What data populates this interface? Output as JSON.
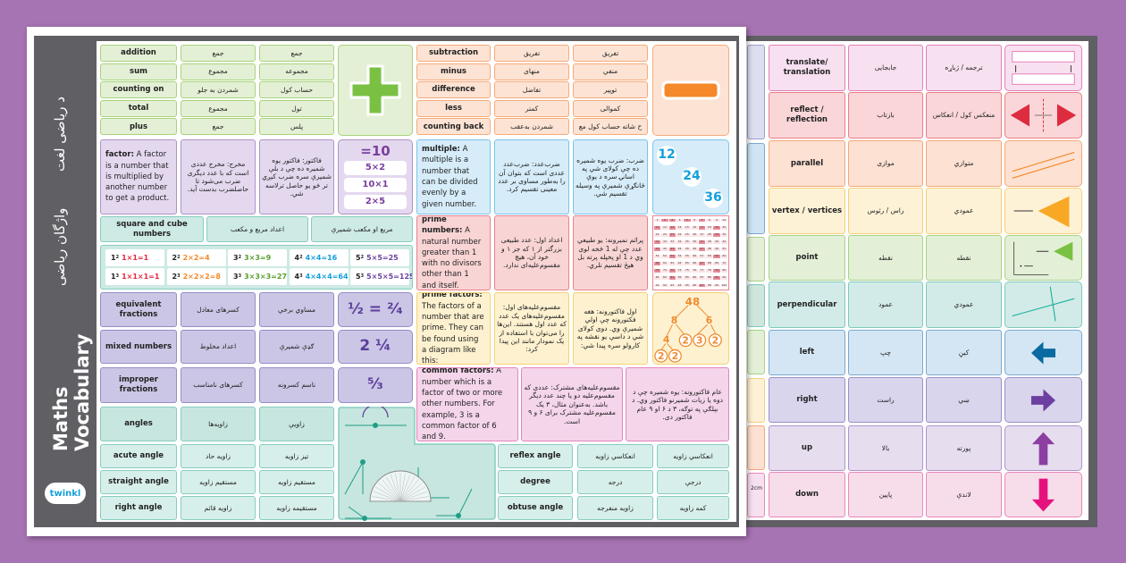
{
  "sidebar": {
    "title_en": "Maths Vocabulary",
    "title_fa": "واژگان ریاضی",
    "title_ps": "د رياضی لغت",
    "logo": "twinkl"
  },
  "addition": {
    "rows": [
      [
        "addition",
        "جمع",
        "جمع"
      ],
      [
        "sum",
        "مجموع",
        "مجموعه"
      ],
      [
        "counting on",
        "شمردن به جلو",
        "حساب کول"
      ],
      [
        "total",
        "مجموع",
        "تول"
      ],
      [
        "plus",
        "جمع",
        "پلس"
      ]
    ],
    "symbol": "plus-icon",
    "color": "#7ac143"
  },
  "subtraction": {
    "rows": [
      [
        "subtraction",
        "تفریق",
        "تفریق"
      ],
      [
        "minus",
        "منهای",
        "منفي"
      ],
      [
        "difference",
        "تفاضل",
        "توپیر"
      ],
      [
        "less",
        "کمتر",
        "کموالی"
      ],
      [
        "counting back",
        "شمردن به‌عقب",
        "ح شاته حساب کول مع"
      ]
    ],
    "symbol": "minus-icon",
    "color": "#f5892a"
  },
  "factor": {
    "term": "factor:",
    "definition": "A factor is a number that is multiplied by another number to get a product.",
    "fa": "مخرج: مخرج عددی است که با عدد دیگری ضرب می‌شود تا حاصلضرب بدست آید.",
    "ps": "فاکتور: فاکتور یوه شمیره ده چې د بلې شمیرې سره ضرب کیږي تر څو یو حاصل ترلاسه شي.",
    "example_total": "=10",
    "examples": [
      "5×2",
      "10×1",
      "2×5"
    ]
  },
  "multiple": {
    "term": "multiple:",
    "definition": "A multiple is a number that can be divided evenly by a given number.",
    "fa": "ضرب‌عدد: ضرب‌عدد عددی است که بتوان آن را به‌طور مساوی بر عدد معینی تقسیم کرد.",
    "ps": "ضرب: ضرب یوه شمیره ده چې کولای شي په اسانۍ سره د یوې ځانګړې شمیرې په وسیله تقسیم شي.",
    "numbers": [
      "12",
      "24",
      "36"
    ]
  },
  "square_cube": {
    "header": [
      "square and cube numbers",
      "اعداد مربع و مکعب",
      "مربع او مکعب شمیرې"
    ],
    "squares": [
      {
        "base": "1",
        "exp": "2",
        "expr": "1×1=1",
        "color": "#e8263c"
      },
      {
        "base": "2",
        "exp": "2",
        "expr": "2×2=4",
        "color": "#f5892a"
      },
      {
        "base": "3",
        "exp": "2",
        "expr": "3×3=9",
        "color": "#5a9e2f"
      },
      {
        "base": "4",
        "exp": "2",
        "expr": "4×4=16",
        "color": "#14a0dc"
      },
      {
        "base": "5",
        "exp": "2",
        "expr": "5×5=25",
        "color": "#6a3f9e"
      }
    ],
    "cubes": [
      {
        "base": "1",
        "exp": "3",
        "expr": "1×1×1=1",
        "color": "#e8263c"
      },
      {
        "base": "2",
        "exp": "3",
        "expr": "2×2×2=8",
        "color": "#f5892a"
      },
      {
        "base": "3",
        "exp": "3",
        "expr": "3×3×3=27",
        "color": "#5a9e2f"
      },
      {
        "base": "4",
        "exp": "3",
        "expr": "4×4×4=64",
        "color": "#14a0dc"
      },
      {
        "base": "5",
        "exp": "3",
        "expr": "5×5×5=125",
        "color": "#6a3f9e"
      }
    ]
  },
  "prime_numbers": {
    "term": "prime numbers:",
    "definition": "A natural number greater than 1 with no divisors other than 1 and itself.",
    "fa": "اعداد اول: عدد طبیعی بزرگتر از ۱ که جز ۱ و خود آن، هیچ مقسوم‌علیه‌ای ندارد.",
    "ps": "پرائم نمبرونه: یو طبیعي عدد چې له 1 څخه لوی وي د 1 او پخپله پرته بل هیڅ تقسیم نلري.",
    "grid_max": 100,
    "highlighted": [
      2,
      3,
      5,
      7,
      11,
      13,
      17,
      19,
      23,
      29,
      31,
      37,
      41,
      43,
      47,
      53,
      59,
      61,
      67,
      71,
      73,
      79,
      83,
      89,
      97
    ]
  },
  "fractions": [
    {
      "en": "equivalent fractions",
      "fa": "کسرهای معادل",
      "ps": "مساوي برخې",
      "example": "½ = ²⁄₄"
    },
    {
      "en": "mixed numbers",
      "fa": "اعداد مخلوط",
      "ps": "ګډې شمیرې",
      "example": "2 ¼"
    },
    {
      "en": "improper fractions",
      "fa": "کسرهای نامناسب",
      "ps": "ناسم کسرونه",
      "example": "⁵⁄₃"
    }
  ],
  "prime_factors": {
    "term": "prime factors:",
    "definition": "The factors of a number that are prime. They can be found using a diagram like this:",
    "fa": "مقسوم‌علیه‌های اول: مقسوم‌علیه‌های یک عدد که عدد اول هستند. این‌ها را می‌توان با استفاده از یک نمودار مانند این پیدا کرد:",
    "ps": "اول فاکتورونه: هغه فکتورونه چې اولي شمیرې وي. دوی کولای شي د داسې یو نقشه په کارولو سره پیدا شي:",
    "tree": {
      "root": "48",
      "left": "8",
      "right": "6",
      "left_left": "4",
      "left_right": "2",
      "right_left": "3",
      "right_right": "2",
      "leaf1": "2",
      "leaf2": "2"
    }
  },
  "common_factors": {
    "term": "common factors:",
    "definition": "A number which is a factor of two or more other numbers. For example, 3 is a common factor of 6 and 9.",
    "fa": "مقسوم‌علیه‌های مشترک: عددی که مقسوم‌علیه دو یا چند عدد دیگر باشد. به‌عنوان مثال، ۳ یک مقسوم‌علیه مشترک برای ۶ و ۹ است.",
    "ps": "عام فاکتورونه: یوه شمیره چې د دوه یا زیات شمیرنو فاکتور وي. د بېلګې په توګه، ۳ د ۶ او ۹ عام فاکتور دی."
  },
  "angles": {
    "rows": [
      [
        "angles",
        "زاویه‌ها",
        "زاویې"
      ],
      [
        "acute angle",
        "زاویه حاد",
        "تیز زاویه"
      ],
      [
        "straight angle",
        "مستقیم زاویه",
        "مستقیم زاویه"
      ],
      [
        "right angle",
        "زاویه قائم",
        "مستقیمه زاویه"
      ]
    ],
    "rows2": [
      [
        "reflex angle",
        "انعکاسي زاویه",
        "انعکاسي زاویه"
      ],
      [
        "degree",
        "درجه",
        "درجې"
      ],
      [
        "obtuse angle",
        "زاویه منفرجه",
        "کمه زاویه"
      ]
    ]
  },
  "back_sheet": {
    "partial_label": "2cm",
    "rows": [
      {
        "en": "translate/ translation",
        "fa": "جابجایی",
        "ps": "ترجمه / ژباړه",
        "icon": "translation-icon",
        "bg": "#f7e0f0",
        "border": "#e57fb5"
      },
      {
        "en": "reflect / reflection",
        "fa": "بازتاب",
        "ps": "منعکس کول / انعکاس",
        "icon": "reflection-icon",
        "bg": "#fad6d8",
        "border": "#e97f8a"
      },
      {
        "en": "parallel",
        "fa": "موازی",
        "ps": "متوازي",
        "icon": "parallel-lines-icon",
        "bg": "#fde1d2",
        "border": "#f5a878"
      },
      {
        "en": "vertex / vertices",
        "fa": "راس / رئوس",
        "ps": "عمودي",
        "icon": "vertex-triangle-icon",
        "bg": "#fef2d6",
        "border": "#f6cf7a"
      },
      {
        "en": "point",
        "fa": "نقطه",
        "ps": "نقطه",
        "icon": "point-icon",
        "bg": "#e3f0d7",
        "border": "#a8d386"
      },
      {
        "en": "perpendicular",
        "fa": "عمود",
        "ps": "عمودي",
        "icon": "perpendicular-lines-icon",
        "bg": "#d3ebe8",
        "border": "#7ccabd"
      },
      {
        "en": "left",
        "fa": "چپ",
        "ps": "کیڼ",
        "icon": "arrow-left-icon",
        "bg": "#d4e6f4",
        "border": "#7aa9cf"
      },
      {
        "en": "right",
        "fa": "راست",
        "ps": "ښي",
        "icon": "arrow-right-icon",
        "bg": "#d9d5ec",
        "border": "#9a8fc8"
      },
      {
        "en": "up",
        "fa": "بالا",
        "ps": "پورته",
        "icon": "arrow-up-icon",
        "bg": "#e6ddef",
        "border": "#ae94cc"
      },
      {
        "en": "down",
        "fa": "پایین",
        "ps": "لاندې",
        "icon": "arrow-down-icon",
        "bg": "#f7dcea",
        "border": "#ea88b8"
      }
    ]
  }
}
